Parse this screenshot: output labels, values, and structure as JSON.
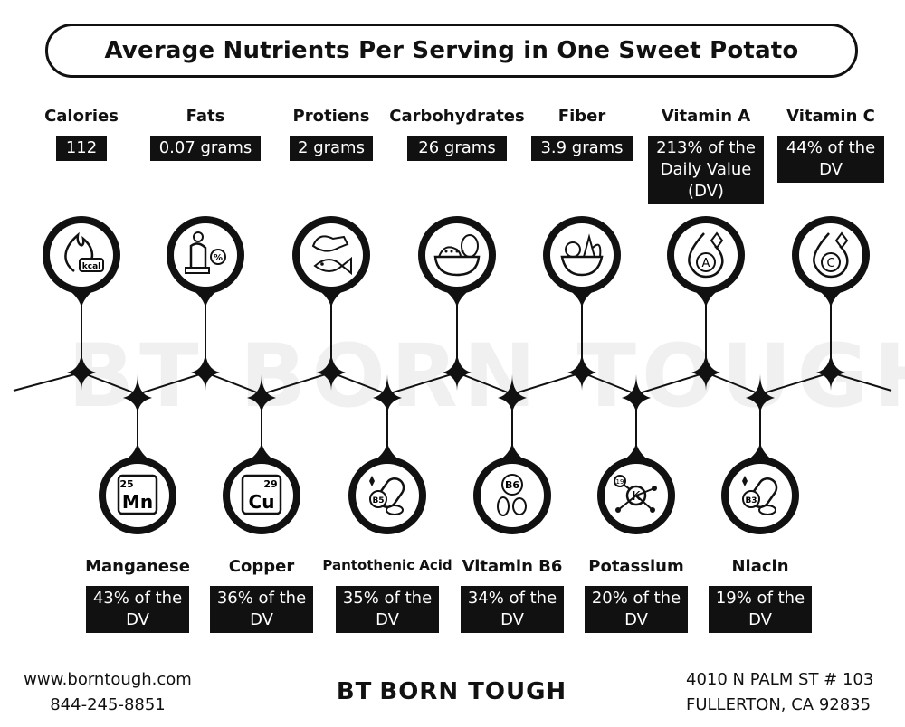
{
  "title": "Average Nutrients Per Serving in One Sweet Potato",
  "watermark": "BT BORN TOUGH",
  "top_items": [
    {
      "label": "Calories",
      "value": "112",
      "icon": "flame-kcal-icon"
    },
    {
      "label": "Fats",
      "value": "0.07 grams",
      "icon": "scale-percent-icon"
    },
    {
      "label": "Protiens",
      "value": "2 grams",
      "icon": "chicken-fish-icon"
    },
    {
      "label": "Carbohydrates",
      "value": "26 grams",
      "icon": "bread-bowl-icon"
    },
    {
      "label": "Fiber",
      "value": "3.9 grams",
      "icon": "vegetable-bowl-icon"
    },
    {
      "label": "Vitamin A",
      "value": "213% of the Daily Value (DV)",
      "icon": "vitamin-a-drop-icon"
    },
    {
      "label": "Vitamin C",
      "value": "44% of the DV",
      "icon": "vitamin-c-drop-icon"
    }
  ],
  "bottom_items": [
    {
      "label": "Manganese",
      "value": "43% of the DV",
      "icon": "manganese-element-icon",
      "symbol": "Mn",
      "number": "25"
    },
    {
      "label": "Copper",
      "value": "36% of the DV",
      "icon": "copper-element-icon",
      "symbol": "Cu",
      "number": "29"
    },
    {
      "label": "Pantothenic Acid",
      "value": "35% of the DV",
      "icon": "pills-b5-icon",
      "symbol": "B5"
    },
    {
      "label": "Vitamin B6",
      "value": "34% of the DV",
      "icon": "vitamin-b6-icon",
      "symbol": "B6"
    },
    {
      "label": "Potassium",
      "value": "20% of the DV",
      "icon": "potassium-molecule-icon",
      "symbol": "K",
      "number": "19"
    },
    {
      "label": "Niacin",
      "value": "19% of the DV",
      "icon": "pills-b3-icon",
      "symbol": "B3"
    }
  ],
  "footer": {
    "website": "www.borntough.com",
    "phone": "844-245-8851",
    "logo_mark": "BT",
    "logo_text": "BORN TOUGH",
    "address_line1": "4010 N PALM ST # 103",
    "address_line2": "FULLERTON, CA 92835"
  }
}
